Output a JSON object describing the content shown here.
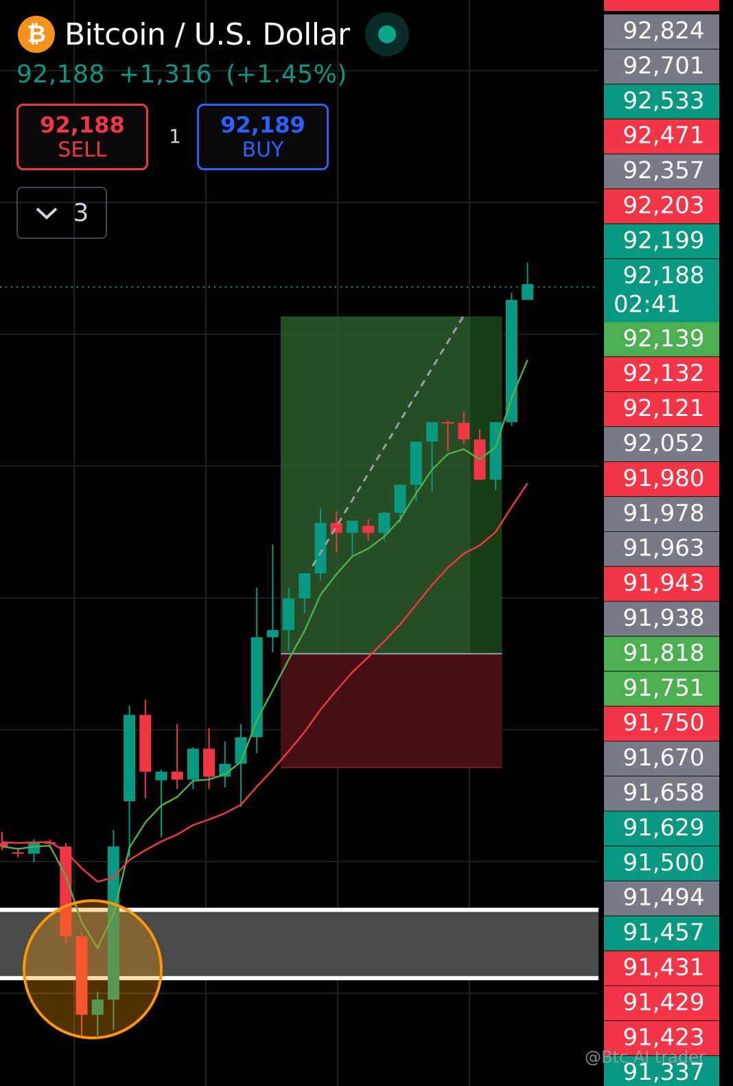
{
  "header": {
    "title": "Bitcoin / U.S. Dollar",
    "icon": "bitcoin-icon",
    "last_price": "92,188",
    "change": "+1,316",
    "change_pct": "(+1.45%)",
    "sell_price": "92,188",
    "sell_label": "SELL",
    "buy_price": "92,189",
    "buy_label": "BUY",
    "spread": "1",
    "indicators_count": "3"
  },
  "watermark": "@Btc AI trader",
  "colors": {
    "up": "#089981",
    "down": "#f23645",
    "neutral": "#787b86",
    "bright_green": "#4caf50",
    "ema_fast": "#4caf50",
    "ema_slow": "#f23645",
    "highlight": "#ff9800"
  },
  "chart_data": {
    "type": "candlestick",
    "ylim": [
      91337,
      92847
    ],
    "price_axis": [
      {
        "label": "92,824",
        "color": "neutral"
      },
      {
        "label": "92,701",
        "color": "neutral"
      },
      {
        "label": "92,533",
        "color": "up"
      },
      {
        "label": "92,471",
        "color": "down"
      },
      {
        "label": "92,357",
        "color": "neutral"
      },
      {
        "label": "92,203",
        "color": "down"
      },
      {
        "label": "92,199",
        "color": "up"
      },
      {
        "label": "92,188",
        "sublabel": "02:41",
        "color": "up"
      },
      {
        "label": "92,139",
        "color": "bright_green"
      },
      {
        "label": "92,132",
        "color": "down"
      },
      {
        "label": "92,121",
        "color": "down"
      },
      {
        "label": "92,052",
        "color": "neutral"
      },
      {
        "label": "91,980",
        "color": "down"
      },
      {
        "label": "91,978",
        "color": "neutral"
      },
      {
        "label": "91,963",
        "color": "neutral"
      },
      {
        "label": "91,943",
        "color": "down"
      },
      {
        "label": "91,938",
        "color": "neutral"
      },
      {
        "label": "91,818",
        "color": "bright_green"
      },
      {
        "label": "91,751",
        "color": "bright_green"
      },
      {
        "label": "91,750",
        "color": "down"
      },
      {
        "label": "91,670",
        "color": "neutral"
      },
      {
        "label": "91,658",
        "color": "neutral"
      },
      {
        "label": "91,629",
        "color": "up"
      },
      {
        "label": "91,500",
        "color": "up"
      },
      {
        "label": "91,494",
        "color": "neutral"
      },
      {
        "label": "91,457",
        "color": "up"
      },
      {
        "label": "91,431",
        "color": "down"
      },
      {
        "label": "91,429",
        "color": "down"
      },
      {
        "label": "91,423",
        "color": "down"
      },
      {
        "label": "91,337",
        "color": "up"
      }
    ],
    "candles": [
      {
        "o": 91675,
        "h": 91690,
        "l": 91665,
        "c": 91670
      },
      {
        "o": 91662,
        "h": 91668,
        "l": 91655,
        "c": 91660
      },
      {
        "o": 91660,
        "h": 91680,
        "l": 91648,
        "c": 91676
      },
      {
        "o": 91676,
        "h": 91680,
        "l": 91668,
        "c": 91674
      },
      {
        "o": 91670,
        "h": 91675,
        "l": 91535,
        "c": 91545
      },
      {
        "o": 91545,
        "h": 91550,
        "l": 91407,
        "c": 91436
      },
      {
        "o": 91436,
        "h": 91468,
        "l": 91407,
        "c": 91457
      },
      {
        "o": 91457,
        "h": 91693,
        "l": 91415,
        "c": 91670
      },
      {
        "o": 91733,
        "h": 91866,
        "l": 91655,
        "c": 91853
      },
      {
        "o": 91853,
        "h": 91874,
        "l": 91737,
        "c": 91774
      },
      {
        "o": 91762,
        "h": 91777,
        "l": 91683,
        "c": 91774
      },
      {
        "o": 91774,
        "h": 91840,
        "l": 91750,
        "c": 91763
      },
      {
        "o": 91763,
        "h": 91808,
        "l": 91750,
        "c": 91806
      },
      {
        "o": 91806,
        "h": 91835,
        "l": 91750,
        "c": 91767
      },
      {
        "o": 91767,
        "h": 91816,
        "l": 91752,
        "c": 91785
      },
      {
        "o": 91785,
        "h": 91840,
        "l": 91725,
        "c": 91822
      },
      {
        "o": 91822,
        "h": 92030,
        "l": 91800,
        "c": 91961
      },
      {
        "o": 91961,
        "h": 92090,
        "l": 91940,
        "c": 91971
      },
      {
        "o": 91971,
        "h": 92030,
        "l": 91943,
        "c": 92015
      },
      {
        "o": 92015,
        "h": 92050,
        "l": 91995,
        "c": 92050
      },
      {
        "o": 92050,
        "h": 92140,
        "l": 92040,
        "c": 92120
      },
      {
        "o": 92120,
        "h": 92136,
        "l": 92079,
        "c": 92106
      },
      {
        "o": 92106,
        "h": 92120,
        "l": 92073,
        "c": 92123
      },
      {
        "o": 92116,
        "h": 92125,
        "l": 92095,
        "c": 92106
      },
      {
        "o": 92106,
        "h": 92136,
        "l": 92095,
        "c": 92134
      },
      {
        "o": 92134,
        "h": 92174,
        "l": 92120,
        "c": 92173
      },
      {
        "o": 92173,
        "h": 92220,
        "l": 92150,
        "c": 92233
      },
      {
        "o": 92233,
        "h": 92260,
        "l": 92164,
        "c": 92260
      },
      {
        "o": 92260,
        "h": 92263,
        "l": 92220,
        "c": 92259
      },
      {
        "o": 92259,
        "h": 92275,
        "l": 92229,
        "c": 92236
      },
      {
        "o": 92236,
        "h": 92250,
        "l": 92180,
        "c": 92180
      },
      {
        "o": 92180,
        "h": 92260,
        "l": 92165,
        "c": 92260
      },
      {
        "o": 92260,
        "h": 92440,
        "l": 92255,
        "c": 92430
      },
      {
        "o": 92430,
        "h": 92482,
        "l": 92432,
        "c": 92452
      }
    ],
    "position": {
      "entry": 91938,
      "take_profit": 92407,
      "stop_loss": 91780
    },
    "support_zone": [
      91487,
      91582
    ],
    "highlight_circle": "orange"
  }
}
